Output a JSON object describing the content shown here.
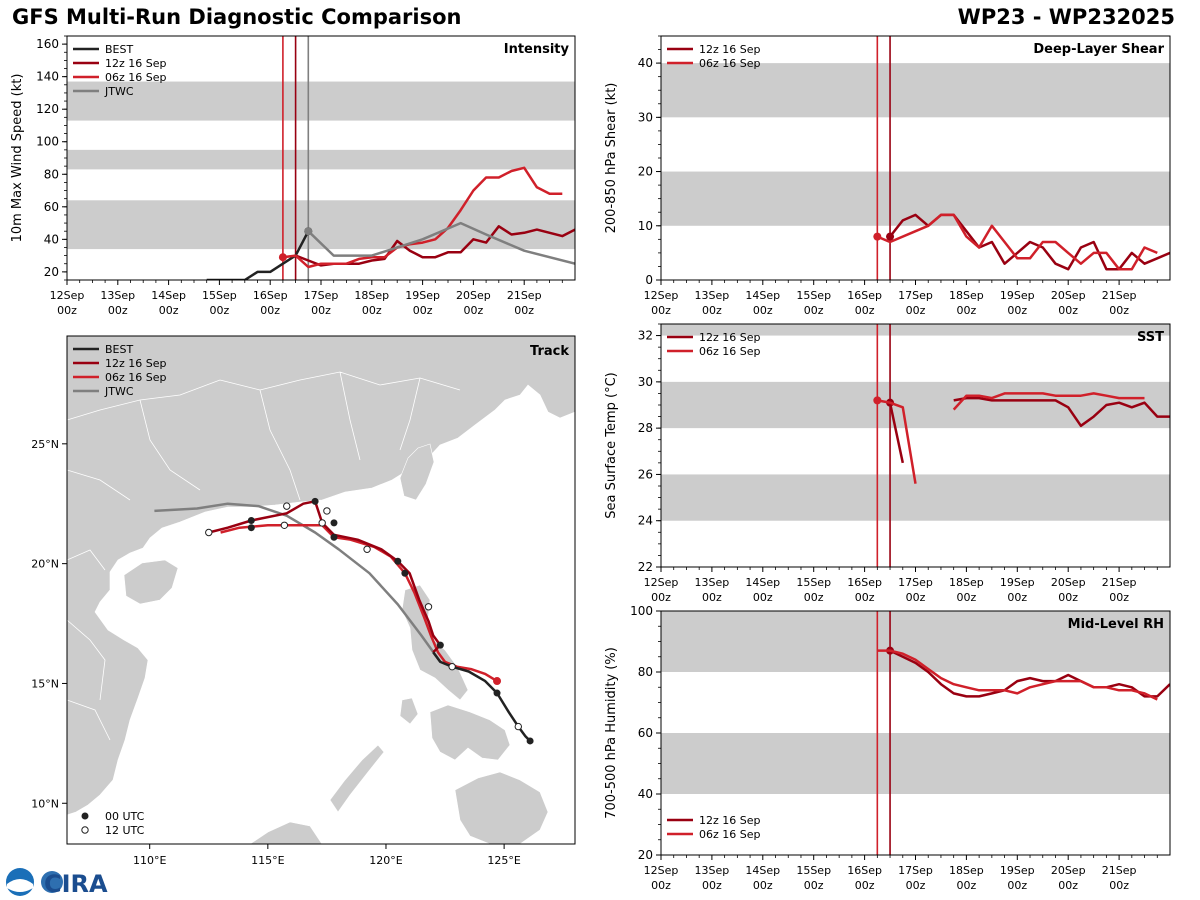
{
  "header": {
    "title": "GFS Multi-Run Diagnostic Comparison",
    "storm_id": "WP23 - WP232025"
  },
  "logo": {
    "text": "CIRA"
  },
  "colors": {
    "best": "#222222",
    "run12z": "#990011",
    "run06z": "#d0202a",
    "jtwc": "#7f7f7f",
    "band": "#cccccc",
    "land": "#cccccc"
  },
  "time_axis": {
    "start": 0,
    "end": 10,
    "tick_labels": [
      [
        "12Sep",
        "00z"
      ],
      [
        "13Sep",
        "00z"
      ],
      [
        "14Sep",
        "00z"
      ],
      [
        "15Sep",
        "00z"
      ],
      [
        "16Sep",
        "00z"
      ],
      [
        "17Sep",
        "00z"
      ],
      [
        "18Sep",
        "00z"
      ],
      [
        "19Sep",
        "00z"
      ],
      [
        "20Sep",
        "00z"
      ],
      [
        "21Sep",
        "00z"
      ]
    ],
    "init_06z": 4.25,
    "init_12z": 4.5
  },
  "chart_data": [
    {
      "id": "intensity",
      "type": "line",
      "title": "Intensity",
      "ylabel": "10m Max Wind Speed (kt)",
      "xlabel": "",
      "ylim": [
        15,
        165
      ],
      "yticks": [
        20,
        40,
        60,
        80,
        100,
        120,
        140,
        160
      ],
      "bands": [
        [
          34,
          64
        ],
        [
          83,
          95
        ],
        [
          113,
          137
        ]
      ],
      "vlines": [
        {
          "x": 4.25,
          "series": "run06z"
        },
        {
          "x": 4.5,
          "series": "run12z"
        },
        {
          "x": 4.75,
          "series": "jtwc"
        }
      ],
      "legend": [
        "BEST",
        "12z 16 Sep",
        "06z 16 Sep",
        "JTWC"
      ],
      "series": [
        {
          "name": "BEST",
          "key": "best",
          "x": [
            2.75,
            3.0,
            3.25,
            3.5,
            3.75,
            4.0,
            4.25,
            4.5,
            4.75
          ],
          "y": [
            15,
            15,
            15,
            15,
            20,
            20,
            25,
            30,
            45
          ],
          "markers": [
            {
              "x": 4.75,
              "y": 45
            }
          ]
        },
        {
          "name": "12z 16 Sep",
          "key": "run12z",
          "x": [
            4.5,
            4.75,
            5.0,
            5.25,
            5.5,
            5.75,
            6.0,
            6.25,
            6.5,
            6.75,
            7.0,
            7.25,
            7.5,
            7.75,
            8.0,
            8.25,
            8.5,
            8.75,
            9.0,
            9.25,
            9.5,
            9.75,
            10.0
          ],
          "y": [
            30,
            27,
            24,
            25,
            25,
            25,
            27,
            28,
            39,
            33,
            29,
            29,
            32,
            32,
            40,
            38,
            48,
            43,
            44,
            46,
            44,
            42,
            46
          ],
          "markers": []
        },
        {
          "name": "06z 16 Sep",
          "key": "run06z",
          "x": [
            4.25,
            4.5,
            4.75,
            5.0,
            5.25,
            5.5,
            5.75,
            6.0,
            6.25,
            6.5,
            6.75,
            7.0,
            7.25,
            7.5,
            7.75,
            8.0,
            8.25,
            8.5,
            8.75,
            9.0,
            9.25,
            9.5,
            9.75
          ],
          "y": [
            29,
            30,
            23,
            25,
            25,
            25,
            28,
            29,
            29,
            35,
            37,
            38,
            40,
            47,
            58,
            70,
            78,
            78,
            82,
            84,
            72,
            68,
            68
          ],
          "markers": [
            {
              "x": 4.25,
              "y": 29
            }
          ]
        },
        {
          "name": "JTWC",
          "key": "jtwc",
          "x": [
            4.75,
            5.25,
            6.0,
            7.0,
            7.75,
            8.25,
            9.0,
            10.0
          ],
          "y": [
            45,
            30,
            30,
            40,
            50,
            43,
            33,
            25
          ],
          "markers": [
            {
              "x": 4.75,
              "y": 45
            }
          ]
        }
      ]
    },
    {
      "id": "shear",
      "type": "line",
      "title": "Deep-Layer Shear",
      "ylabel": "200-850 hPa Shear (kt)",
      "xlabel": "",
      "ylim": [
        0,
        45
      ],
      "yticks": [
        0,
        10,
        20,
        30,
        40
      ],
      "bands": [
        [
          10,
          20
        ],
        [
          30,
          40
        ]
      ],
      "vlines": [
        {
          "x": 4.25,
          "series": "run06z"
        },
        {
          "x": 4.5,
          "series": "run12z"
        }
      ],
      "legend": [
        "12z 16 Sep",
        "06z 16 Sep"
      ],
      "series": [
        {
          "name": "12z 16 Sep",
          "key": "run12z",
          "x": [
            4.5,
            4.75,
            5.0,
            5.25,
            5.5,
            5.75,
            6.0,
            6.25,
            6.5,
            6.75,
            7.0,
            7.25,
            7.5,
            7.75,
            8.0,
            8.25,
            8.5,
            8.75,
            9.0,
            9.25,
            9.5,
            9.75,
            10.0
          ],
          "y": [
            8,
            11,
            12,
            10,
            12,
            12,
            9,
            6,
            7,
            3,
            5,
            7,
            6,
            3,
            2,
            6,
            7,
            2,
            2,
            5,
            3,
            4,
            5
          ],
          "markers": [
            {
              "x": 4.5,
              "y": 8
            }
          ]
        },
        {
          "name": "06z 16 Sep",
          "key": "run06z",
          "x": [
            4.25,
            4.5,
            5.0,
            5.25,
            5.5,
            5.75,
            6.0,
            6.25,
            6.5,
            6.75,
            7.0,
            7.25,
            7.5,
            7.75,
            8.0,
            8.25,
            8.5,
            8.75,
            9.0,
            9.25,
            9.5,
            9.75
          ],
          "y": [
            8,
            7,
            9,
            10,
            12,
            12,
            8,
            6,
            10,
            7,
            4,
            4,
            7,
            7,
            5,
            3,
            5,
            5,
            2,
            2,
            6,
            5
          ],
          "markers": [
            {
              "x": 4.25,
              "y": 8
            }
          ]
        }
      ]
    },
    {
      "id": "sst",
      "type": "line",
      "title": "SST",
      "ylabel": "Sea Surface Temp (°C)",
      "xlabel": "",
      "ylim": [
        22,
        32.5
      ],
      "yticks": [
        22,
        24,
        26,
        28,
        30,
        32
      ],
      "bands": [
        [
          24,
          26
        ],
        [
          28,
          30
        ],
        [
          32,
          32.5
        ]
      ],
      "vlines": [
        {
          "x": 4.25,
          "series": "run06z"
        },
        {
          "x": 4.5,
          "series": "run12z"
        }
      ],
      "legend": [
        "12z 16 Sep",
        "06z 16 Sep"
      ],
      "series": [
        {
          "name": "12z 16 Sep",
          "key": "run12z",
          "x": [
            4.5,
            4.75
          ],
          "y": [
            29.1,
            26.5
          ],
          "markers": [
            {
              "x": 4.5,
              "y": 29.1
            }
          ],
          "extra": {
            "x": [
              5.75,
              6.0,
              6.25,
              6.5,
              6.75,
              7.0,
              7.25,
              7.5,
              7.75,
              8.0,
              8.25,
              8.5,
              8.75,
              9.0,
              9.25,
              9.5,
              9.75,
              10.0
            ],
            "y": [
              29.2,
              29.3,
              29.3,
              29.2,
              29.2,
              29.2,
              29.2,
              29.2,
              29.2,
              28.9,
              28.1,
              28.5,
              29.0,
              29.1,
              28.9,
              29.1,
              28.5,
              28.5
            ]
          }
        },
        {
          "name": "06z 16 Sep",
          "key": "run06z",
          "x": [
            4.25,
            4.5,
            4.75,
            5.0
          ],
          "y": [
            29.2,
            29.1,
            28.9,
            25.6
          ],
          "markers": [
            {
              "x": 4.25,
              "y": 29.2
            }
          ],
          "extra": {
            "x": [
              5.75,
              6.0,
              6.25,
              6.5,
              6.75,
              7.0,
              7.25,
              7.5,
              7.75,
              8.0,
              8.25,
              8.5,
              8.75,
              9.0,
              9.25,
              9.5
            ],
            "y": [
              28.8,
              29.4,
              29.4,
              29.3,
              29.5,
              29.5,
              29.5,
              29.5,
              29.4,
              29.4,
              29.4,
              29.5,
              29.4,
              29.3,
              29.3,
              29.3
            ]
          }
        }
      ]
    },
    {
      "id": "rh",
      "type": "line",
      "title": "Mid-Level RH",
      "ylabel": "700-500 hPa Humidity (%)",
      "xlabel": "",
      "ylim": [
        20,
        100
      ],
      "yticks": [
        20,
        40,
        60,
        80,
        100
      ],
      "bands": [
        [
          40,
          60
        ],
        [
          80,
          100
        ]
      ],
      "vlines": [
        {
          "x": 4.25,
          "series": "run06z"
        },
        {
          "x": 4.5,
          "series": "run12z"
        }
      ],
      "legend": [
        "12z 16 Sep",
        "06z 16 Sep"
      ],
      "series": [
        {
          "name": "12z 16 Sep",
          "key": "run12z",
          "x": [
            4.5,
            4.75,
            5.0,
            5.25,
            5.5,
            5.75,
            6.0,
            6.25,
            6.5,
            6.75,
            7.0,
            7.25,
            7.5,
            7.75,
            8.0,
            8.25,
            8.5,
            8.75,
            9.0,
            9.25,
            9.5,
            9.75,
            10.0
          ],
          "y": [
            87,
            85,
            83,
            80,
            76,
            73,
            72,
            72,
            73,
            74,
            77,
            78,
            77,
            77,
            79,
            77,
            75,
            75,
            76,
            75,
            72,
            72,
            76
          ],
          "markers": [
            {
              "x": 4.5,
              "y": 87
            }
          ]
        },
        {
          "name": "06z 16 Sep",
          "key": "run06z",
          "x": [
            4.25,
            4.5,
            4.75,
            5.0,
            5.25,
            5.5,
            5.75,
            6.0,
            6.25,
            6.5,
            6.75,
            7.0,
            7.25,
            7.5,
            7.75,
            8.0,
            8.25,
            8.5,
            8.75,
            9.0,
            9.25,
            9.5,
            9.75
          ],
          "y": [
            87,
            87,
            86,
            84,
            81,
            78,
            76,
            75,
            74,
            74,
            74,
            73,
            75,
            76,
            77,
            77,
            77,
            75,
            75,
            74,
            74,
            73,
            71
          ]
        }
      ]
    },
    {
      "id": "track",
      "type": "scatter",
      "title": "Track",
      "xlabel": "",
      "ylabel": "",
      "xlim": [
        106.5,
        128
      ],
      "ylim": [
        8.3,
        29.5
      ],
      "xticks": [
        110,
        115,
        120,
        125
      ],
      "xtick_labels": [
        "110°E",
        "115°E",
        "120°E",
        "125°E"
      ],
      "yticks": [
        10,
        15,
        20,
        25
      ],
      "ytick_labels": [
        "10°N",
        "15°N",
        "20°N",
        "25°N"
      ],
      "legend": [
        "BEST",
        "12z 16 Sep",
        "06z 16 Sep",
        "JTWC"
      ],
      "marker_legend": [
        "00 UTC",
        "12 UTC"
      ],
      "series": [
        {
          "name": "BEST",
          "key": "best",
          "lon": [
            126.1,
            125.9,
            125.6,
            125.2,
            124.7,
            124.2,
            123.5,
            122.8,
            122.3,
            122.0
          ],
          "lat": [
            12.6,
            12.8,
            13.2,
            13.8,
            14.6,
            15.1,
            15.5,
            15.7,
            15.9,
            16.3
          ],
          "m00": [
            [
              126.1,
              12.6
            ],
            [
              124.7,
              14.6
            ]
          ],
          "m12": [
            [
              125.6,
              13.2
            ]
          ]
        },
        {
          "name": "12z 16 Sep",
          "key": "run12z",
          "lon": [
            122.0,
            122.3,
            122.0,
            121.8,
            121.4,
            121.0,
            120.5,
            119.8,
            118.8,
            117.8,
            117.3,
            117.0,
            116.5,
            115.8,
            114.3,
            113.3,
            112.5
          ],
          "lat": [
            16.3,
            16.6,
            17.0,
            17.6,
            18.5,
            19.6,
            20.1,
            20.6,
            21.0,
            21.2,
            21.7,
            22.6,
            22.5,
            22.1,
            21.8,
            21.5,
            21.3
          ],
          "m00": [
            [
              122.3,
              16.6
            ],
            [
              120.5,
              20.1
            ],
            [
              117.8,
              21.7
            ],
            [
              117.0,
              22.6
            ],
            [
              114.3,
              21.8
            ]
          ],
          "m12": [
            [
              121.8,
              18.2
            ],
            [
              117.5,
              22.2
            ],
            [
              115.8,
              22.4
            ],
            [
              112.5,
              21.3
            ]
          ]
        },
        {
          "name": "06z 16 Sep",
          "key": "run06z",
          "lon": [
            124.7,
            124.2,
            123.6,
            123.0,
            122.5,
            122.2,
            121.9,
            121.6,
            121.2,
            120.8,
            120.2,
            119.5,
            118.5,
            117.8,
            117.3,
            116.3,
            115.0,
            113.8,
            113.0
          ],
          "lat": [
            15.1,
            15.4,
            15.6,
            15.7,
            15.9,
            16.3,
            17.0,
            17.8,
            18.8,
            19.6,
            20.3,
            20.7,
            21.0,
            21.1,
            21.6,
            21.6,
            21.6,
            21.5,
            21.3
          ],
          "m00": [
            [
              120.8,
              19.6
            ],
            [
              117.8,
              21.1
            ],
            [
              114.3,
              21.5
            ]
          ],
          "m12": [
            [
              122.8,
              15.7
            ],
            [
              119.2,
              20.6
            ],
            [
              117.3,
              21.7
            ],
            [
              115.7,
              21.6
            ]
          ],
          "mred": [
            [
              124.7,
              15.1
            ]
          ]
        },
        {
          "name": "JTWC",
          "key": "jtwc",
          "lon": [
            122.3,
            121.5,
            120.5,
            119.3,
            118.0,
            117.0,
            115.8,
            114.6,
            113.3,
            112.0,
            110.2
          ],
          "lat": [
            15.9,
            17.0,
            18.3,
            19.6,
            20.6,
            21.3,
            22.0,
            22.4,
            22.5,
            22.3,
            22.2
          ]
        }
      ],
      "labels": {
        "best_markers_hidden": false
      }
    }
  ]
}
